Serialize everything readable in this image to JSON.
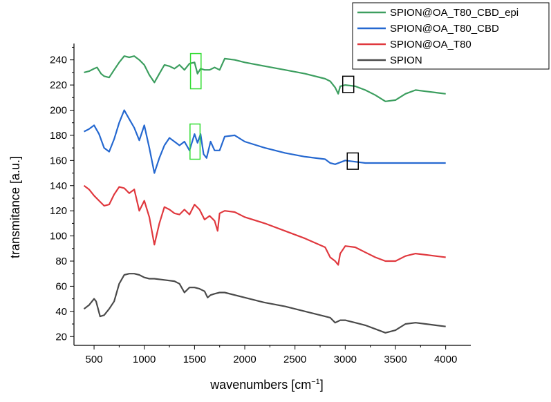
{
  "chart_data": {
    "type": "line",
    "xlabel": "wavenumbers [cm",
    "xlabel_sup": "−1",
    "xlabel_end": "]",
    "ylabel": "transmitance [a.u.]",
    "xlim": [
      300,
      4250
    ],
    "ylim": [
      13,
      253
    ],
    "xticks": [
      500,
      1000,
      1500,
      2000,
      2500,
      3000,
      3500,
      4000
    ],
    "yticks": [
      20,
      40,
      60,
      80,
      100,
      120,
      140,
      160,
      180,
      200,
      220,
      240
    ],
    "grid": false,
    "legend_position": "top-right",
    "series": [
      {
        "name": "SPION@OA_T80_CBD_epi",
        "color": "#3c9e5f",
        "points": [
          [
            400,
            230
          ],
          [
            450,
            231
          ],
          [
            500,
            233
          ],
          [
            530,
            234
          ],
          [
            570,
            229
          ],
          [
            600,
            227
          ],
          [
            650,
            226
          ],
          [
            700,
            232
          ],
          [
            750,
            238
          ],
          [
            800,
            243
          ],
          [
            850,
            242
          ],
          [
            900,
            243
          ],
          [
            950,
            240
          ],
          [
            1000,
            236
          ],
          [
            1050,
            228
          ],
          [
            1100,
            222
          ],
          [
            1150,
            229
          ],
          [
            1200,
            236
          ],
          [
            1250,
            235
          ],
          [
            1300,
            233
          ],
          [
            1350,
            236
          ],
          [
            1400,
            232
          ],
          [
            1450,
            237
          ],
          [
            1500,
            238
          ],
          [
            1530,
            229
          ],
          [
            1560,
            233
          ],
          [
            1600,
            232
          ],
          [
            1650,
            232
          ],
          [
            1700,
            234
          ],
          [
            1750,
            232
          ],
          [
            1800,
            241
          ],
          [
            1900,
            240
          ],
          [
            2000,
            238
          ],
          [
            2200,
            235
          ],
          [
            2400,
            232
          ],
          [
            2600,
            229
          ],
          [
            2800,
            225
          ],
          [
            2850,
            223
          ],
          [
            2900,
            218
          ],
          [
            2930,
            213
          ],
          [
            2950,
            219
          ],
          [
            3000,
            220
          ],
          [
            3100,
            219
          ],
          [
            3200,
            216
          ],
          [
            3300,
            212
          ],
          [
            3400,
            207
          ],
          [
            3500,
            208
          ],
          [
            3600,
            213
          ],
          [
            3700,
            216
          ],
          [
            3800,
            215
          ],
          [
            3900,
            214
          ],
          [
            4000,
            213
          ]
        ]
      },
      {
        "name": "SPION@OA_T80_CBD",
        "color": "#2568d0",
        "points": [
          [
            400,
            183
          ],
          [
            450,
            185
          ],
          [
            500,
            188
          ],
          [
            550,
            181
          ],
          [
            600,
            170
          ],
          [
            650,
            167
          ],
          [
            700,
            177
          ],
          [
            750,
            190
          ],
          [
            800,
            200
          ],
          [
            850,
            193
          ],
          [
            900,
            186
          ],
          [
            950,
            176
          ],
          [
            1000,
            188
          ],
          [
            1050,
            170
          ],
          [
            1100,
            150
          ],
          [
            1150,
            162
          ],
          [
            1200,
            172
          ],
          [
            1250,
            178
          ],
          [
            1300,
            175
          ],
          [
            1350,
            172
          ],
          [
            1400,
            175
          ],
          [
            1450,
            168
          ],
          [
            1500,
            181
          ],
          [
            1530,
            174
          ],
          [
            1560,
            181
          ],
          [
            1590,
            165
          ],
          [
            1620,
            162
          ],
          [
            1660,
            175
          ],
          [
            1700,
            168
          ],
          [
            1750,
            168
          ],
          [
            1800,
            179
          ],
          [
            1900,
            180
          ],
          [
            2000,
            175
          ],
          [
            2200,
            170
          ],
          [
            2400,
            166
          ],
          [
            2600,
            163
          ],
          [
            2800,
            161
          ],
          [
            2850,
            158
          ],
          [
            2900,
            157
          ],
          [
            3000,
            160
          ],
          [
            3100,
            159
          ],
          [
            3200,
            158
          ],
          [
            3400,
            158
          ],
          [
            3600,
            158
          ],
          [
            3800,
            158
          ],
          [
            4000,
            158
          ]
        ]
      },
      {
        "name": "SPION@OA_T80",
        "color": "#e0383e",
        "points": [
          [
            400,
            140
          ],
          [
            450,
            137
          ],
          [
            500,
            132
          ],
          [
            550,
            128
          ],
          [
            600,
            124
          ],
          [
            650,
            125
          ],
          [
            700,
            133
          ],
          [
            750,
            139
          ],
          [
            800,
            138
          ],
          [
            850,
            134
          ],
          [
            900,
            137
          ],
          [
            950,
            120
          ],
          [
            1000,
            128
          ],
          [
            1050,
            115
          ],
          [
            1100,
            93
          ],
          [
            1150,
            110
          ],
          [
            1200,
            123
          ],
          [
            1250,
            121
          ],
          [
            1300,
            118
          ],
          [
            1350,
            117
          ],
          [
            1400,
            121
          ],
          [
            1450,
            117
          ],
          [
            1500,
            125
          ],
          [
            1550,
            121
          ],
          [
            1600,
            113
          ],
          [
            1650,
            116
          ],
          [
            1700,
            112
          ],
          [
            1730,
            104
          ],
          [
            1750,
            118
          ],
          [
            1800,
            120
          ],
          [
            1900,
            119
          ],
          [
            2000,
            115
          ],
          [
            2200,
            110
          ],
          [
            2400,
            104
          ],
          [
            2600,
            98
          ],
          [
            2800,
            91
          ],
          [
            2850,
            83
          ],
          [
            2900,
            80
          ],
          [
            2930,
            77
          ],
          [
            2950,
            86
          ],
          [
            3000,
            92
          ],
          [
            3100,
            91
          ],
          [
            3200,
            87
          ],
          [
            3300,
            83
          ],
          [
            3400,
            80
          ],
          [
            3500,
            80
          ],
          [
            3600,
            84
          ],
          [
            3700,
            86
          ],
          [
            3800,
            85
          ],
          [
            3900,
            84
          ],
          [
            4000,
            83
          ]
        ]
      },
      {
        "name": "SPION",
        "color": "#4a4a4a",
        "points": [
          [
            400,
            42
          ],
          [
            450,
            45
          ],
          [
            500,
            50
          ],
          [
            520,
            48
          ],
          [
            560,
            36
          ],
          [
            600,
            37
          ],
          [
            650,
            42
          ],
          [
            700,
            48
          ],
          [
            750,
            62
          ],
          [
            800,
            69
          ],
          [
            850,
            70
          ],
          [
            900,
            70
          ],
          [
            950,
            69
          ],
          [
            1000,
            67
          ],
          [
            1050,
            66
          ],
          [
            1100,
            66
          ],
          [
            1200,
            65
          ],
          [
            1300,
            64
          ],
          [
            1350,
            62
          ],
          [
            1400,
            55
          ],
          [
            1450,
            59
          ],
          [
            1500,
            59
          ],
          [
            1550,
            58
          ],
          [
            1600,
            56
          ],
          [
            1630,
            51
          ],
          [
            1660,
            53
          ],
          [
            1700,
            54
          ],
          [
            1750,
            55
          ],
          [
            1800,
            55
          ],
          [
            2000,
            51
          ],
          [
            2200,
            47
          ],
          [
            2400,
            44
          ],
          [
            2600,
            40
          ],
          [
            2800,
            36
          ],
          [
            2850,
            35
          ],
          [
            2900,
            31
          ],
          [
            2950,
            33
          ],
          [
            3000,
            33
          ],
          [
            3100,
            31
          ],
          [
            3200,
            29
          ],
          [
            3300,
            26
          ],
          [
            3400,
            23
          ],
          [
            3500,
            25
          ],
          [
            3600,
            30
          ],
          [
            3700,
            31
          ],
          [
            3800,
            30
          ],
          [
            3900,
            29
          ],
          [
            4000,
            28
          ]
        ]
      }
    ],
    "annotations": [
      {
        "type": "box",
        "color": "#32dc32",
        "x": [
          1460,
          1565
        ],
        "y": [
          217,
          245
        ]
      },
      {
        "type": "box",
        "color": "#32dc32",
        "x": [
          1455,
          1555
        ],
        "y": [
          161,
          189
        ]
      },
      {
        "type": "box",
        "color": "#000000",
        "x": [
          2975,
          3085
        ],
        "y": [
          214,
          227
        ]
      },
      {
        "type": "box",
        "color": "#000000",
        "x": [
          3020,
          3130
        ],
        "y": [
          153,
          166
        ]
      }
    ]
  }
}
